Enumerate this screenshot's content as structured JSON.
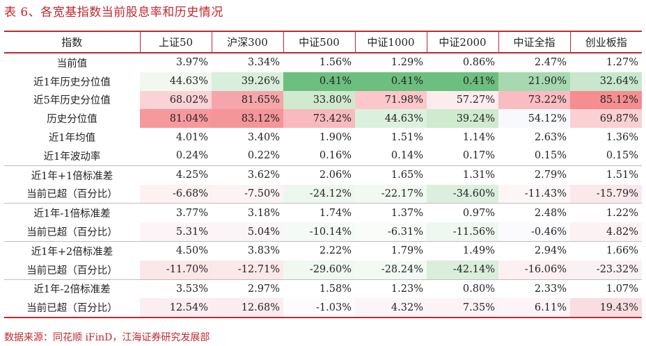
{
  "title": "表 6、各宽基指数当前股息率和历史情况",
  "source": "数据来源：同花顺 iFinD，江海证券研究发展部",
  "colors": {
    "accent": "#c0282d"
  },
  "table": {
    "headers": [
      "指数",
      "上证50",
      "沪深300",
      "中证500",
      "中证1000",
      "中证2000",
      "中证全指",
      "创业板指"
    ],
    "rows": [
      {
        "label": "当前值",
        "values": [
          "3.97%",
          "3.34%",
          "1.56%",
          "1.29%",
          "0.86%",
          "2.47%",
          "1.27%"
        ],
        "colors": [
          "#ffffff",
          "#ffffff",
          "#ffffff",
          "#ffffff",
          "#ffffff",
          "#ffffff",
          "#ffffff"
        ]
      },
      {
        "label": "近1年历史分位值",
        "values": [
          "44.63%",
          "39.26%",
          "0.41%",
          "0.41%",
          "0.41%",
          "21.90%",
          "32.64%"
        ],
        "colors": [
          "#f0f8f0",
          "#d9efdd",
          "#6cbf7e",
          "#6cbf7e",
          "#6cbf7e",
          "#a7d9b0",
          "#c8e7cd"
        ]
      },
      {
        "label": "近5年历史分位值",
        "values": [
          "68.02%",
          "81.65%",
          "33.80%",
          "71.98%",
          "57.27%",
          "73.22%",
          "85.12%"
        ],
        "colors": [
          "#fbd2d6",
          "#f6a6aa",
          "#cfeacf",
          "#fbc7cb",
          "#fcecee",
          "#f9bcc0",
          "#f58d91"
        ]
      },
      {
        "label": "历史分位值",
        "values": [
          "81.04%",
          "83.12%",
          "73.42%",
          "44.63%",
          "39.24%",
          "54.12%",
          "69.87%"
        ],
        "colors": [
          "#f5999d",
          "#f4959a",
          "#f8babe",
          "#dcf0de",
          "#cfeacf",
          "#f8f9fc",
          "#fbd0d3"
        ]
      },
      {
        "label": "近1年均值",
        "values": [
          "4.01%",
          "3.40%",
          "1.90%",
          "1.51%",
          "1.14%",
          "2.63%",
          "1.36%"
        ],
        "colors": [
          "#ffffff",
          "#ffffff",
          "#ffffff",
          "#ffffff",
          "#ffffff",
          "#ffffff",
          "#ffffff"
        ]
      },
      {
        "label": "近1年波动率",
        "values": [
          "0.24%",
          "0.22%",
          "0.16%",
          "0.14%",
          "0.17%",
          "0.15%",
          "0.15%"
        ],
        "colors": [
          "#ffffff",
          "#ffffff",
          "#ffffff",
          "#ffffff",
          "#ffffff",
          "#ffffff",
          "#ffffff"
        ]
      },
      {
        "label": "近1年+1倍标准差",
        "values": [
          "4.25%",
          "3.62%",
          "2.06%",
          "1.65%",
          "1.31%",
          "2.79%",
          "1.51%"
        ],
        "colors": [
          "#ffffff",
          "#ffffff",
          "#ffffff",
          "#ffffff",
          "#ffffff",
          "#ffffff",
          "#ffffff"
        ],
        "sep": true
      },
      {
        "label": "当前已超（百分比）",
        "values": [
          "-6.68%",
          "-7.50%",
          "-24.12%",
          "-22.17%",
          "-34.60%",
          "-11.43%",
          "-15.79%"
        ],
        "colors": [
          "#fdf1f2",
          "#fdf3f4",
          "#eef7ef",
          "#f1f9f2",
          "#dcefde",
          "#fdf6f7",
          "#fbe8ea"
        ]
      },
      {
        "label": "近1年-1倍标准差",
        "values": [
          "3.77%",
          "3.18%",
          "1.74%",
          "1.37%",
          "0.97%",
          "2.48%",
          "1.22%"
        ],
        "colors": [
          "#ffffff",
          "#ffffff",
          "#ffffff",
          "#ffffff",
          "#ffffff",
          "#ffffff",
          "#ffffff"
        ],
        "sep": true
      },
      {
        "label": "当前已超（百分比）",
        "values": [
          "5.31%",
          "5.04%",
          "-10.14%",
          "-6.31%",
          "-11.56%",
          "-0.46%",
          "4.82%"
        ],
        "colors": [
          "#fcf4f6",
          "#fcf5f7",
          "#f4faf5",
          "#f9fcf9",
          "#eff8f0",
          "#fbfbfd",
          "#fcf2f4"
        ]
      },
      {
        "label": "近1年+2倍标准差",
        "values": [
          "4.50%",
          "3.83%",
          "2.22%",
          "1.79%",
          "1.49%",
          "2.94%",
          "1.66%"
        ],
        "colors": [
          "#ffffff",
          "#ffffff",
          "#ffffff",
          "#ffffff",
          "#ffffff",
          "#ffffff",
          "#ffffff"
        ],
        "sep": true
      },
      {
        "label": "当前已超（百分比）",
        "values": [
          "-11.70%",
          "-12.71%",
          "-29.60%",
          "-28.24%",
          "-42.14%",
          "-16.06%",
          "-23.32%"
        ],
        "colors": [
          "#fbe6e8",
          "#fbe8ea",
          "#f0f8f1",
          "#f3faf4",
          "#d9eedb",
          "#fcf0f2",
          "#f9f1f3"
        ]
      },
      {
        "label": "近1年-2倍标准差",
        "values": [
          "3.53%",
          "2.97%",
          "1.58%",
          "1.23%",
          "0.80%",
          "2.33%",
          "1.07%"
        ],
        "colors": [
          "#ffffff",
          "#ffffff",
          "#ffffff",
          "#ffffff",
          "#ffffff",
          "#ffffff",
          "#ffffff"
        ],
        "sep": true
      },
      {
        "label": "当前已超（百分比）",
        "values": [
          "12.54%",
          "12.68%",
          "-1.03%",
          "4.32%",
          "7.35%",
          "6.11%",
          "19.43%"
        ],
        "colors": [
          "#fbeef0",
          "#fbedef",
          "#fbfcfb",
          "#fcf5f7",
          "#fcf3f5",
          "#fcf4f6",
          "#f9dde0"
        ],
        "last": true
      }
    ]
  }
}
